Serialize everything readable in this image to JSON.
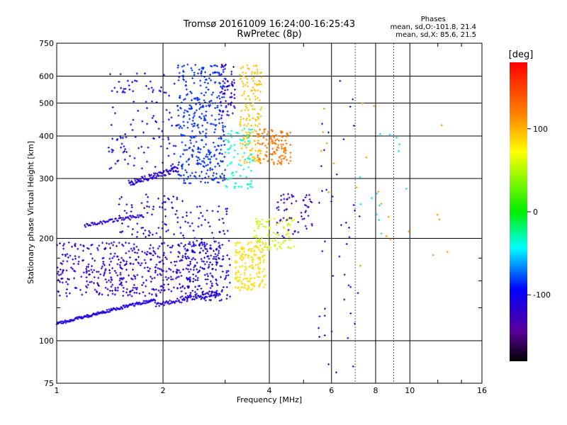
{
  "title_line1": "Tromsø 20161009 16:24:00-16:25:43",
  "title_line2": "RwPretec (8p)",
  "stats": {
    "header": "Phases",
    "line_O": "mean, sd,O:-101.8, 21.4",
    "line_X": "mean, sd,X: 85.6, 21.5"
  },
  "colorbar": {
    "label": "[deg]",
    "ticks": [
      {
        "value": 100,
        "label": "100"
      },
      {
        "value": 0,
        "label": "0"
      },
      {
        "value": -100,
        "label": "-100"
      }
    ],
    "range": [
      -180,
      180
    ]
  },
  "chart_data": {
    "type": "scatter",
    "title": "Tromsø 20161009 16:24:00-16:25:43",
    "subtitle": "RwPretec (8p)",
    "xlabel": "Frequency [MHz]",
    "ylabel": "Stationary phase Virtual Height [km]",
    "xscale": "log",
    "yscale": "log",
    "xlim": [
      1,
      16
    ],
    "ylim": [
      75,
      750
    ],
    "x_ticks": [
      1,
      2,
      4,
      6,
      8,
      10,
      16
    ],
    "y_ticks": [
      75,
      100,
      200,
      300,
      400,
      500,
      600,
      750
    ],
    "grid": true,
    "color_variable": "phase [deg]",
    "clusters": [
      {
        "id": "low-trace",
        "phase": -110,
        "f0": 1.0,
        "f1": 1.9,
        "h0": 112,
        "h1": 132,
        "n": 140,
        "jitter": 0.01
      },
      {
        "id": "low-trace-2",
        "phase": -115,
        "f0": 1.9,
        "f1": 2.9,
        "h0": 128,
        "h1": 138,
        "n": 80,
        "jitter": 0.02
      },
      {
        "id": "E-cloud",
        "phase": -112,
        "f0": 1.0,
        "f1": 2.9,
        "h0": 135,
        "h1": 195,
        "n": 520,
        "jitter": 0.0
      },
      {
        "id": "E-upper",
        "phase": -108,
        "f0": 1.5,
        "f1": 2.3,
        "h0": 200,
        "h1": 270,
        "n": 80,
        "jitter": 0.0
      },
      {
        "id": "Es-band",
        "phase": -115,
        "f0": 1.2,
        "f1": 1.75,
        "h0": 218,
        "h1": 234,
        "n": 60,
        "jitter": 0.01
      },
      {
        "id": "F-trace-low",
        "phase": -115,
        "f0": 1.6,
        "f1": 2.2,
        "h0": 290,
        "h1": 320,
        "n": 90,
        "jitter": 0.02
      },
      {
        "id": "F-cloud",
        "phase": -100,
        "f0": 1.4,
        "f1": 2.2,
        "h0": 320,
        "h1": 620,
        "n": 120,
        "jitter": 0.0
      },
      {
        "id": "F-main",
        "phase": -85,
        "f0": 2.2,
        "f1": 3.0,
        "h0": 290,
        "h1": 650,
        "n": 380,
        "jitter": 0.0
      },
      {
        "id": "F-upper",
        "phase": -115,
        "f0": 2.9,
        "f1": 3.2,
        "h0": 450,
        "h1": 650,
        "n": 60,
        "jitter": 0.0
      },
      {
        "id": "F-x-yellow",
        "phase": 95,
        "f0": 3.3,
        "f1": 3.8,
        "h0": 330,
        "h1": 650,
        "n": 160,
        "jitter": 0.0
      },
      {
        "id": "F-x-orange",
        "phase": 125,
        "f0": 3.7,
        "f1": 4.6,
        "h0": 330,
        "h1": 420,
        "n": 120,
        "jitter": 0.0
      },
      {
        "id": "F-cyan",
        "phase": -35,
        "f0": 3.0,
        "f1": 3.6,
        "h0": 280,
        "h1": 420,
        "n": 80,
        "jitter": 0.0
      },
      {
        "id": "mid-blue",
        "phase": -105,
        "f0": 2.3,
        "f1": 3.1,
        "h0": 130,
        "h1": 250,
        "n": 150,
        "jitter": 0.0
      },
      {
        "id": "mid-yellow",
        "phase": 85,
        "f0": 3.2,
        "f1": 3.9,
        "h0": 140,
        "h1": 195,
        "n": 170,
        "jitter": 0.0
      },
      {
        "id": "mid-green",
        "phase": 55,
        "f0": 3.6,
        "f1": 4.7,
        "h0": 185,
        "h1": 230,
        "n": 90,
        "jitter": 0.0
      },
      {
        "id": "mid-purple",
        "phase": -125,
        "f0": 4.2,
        "f1": 5.3,
        "h0": 200,
        "h1": 270,
        "n": 60,
        "jitter": 0.0
      },
      {
        "id": "scatter-hf",
        "phase": -110,
        "f0": 5.5,
        "f1": 7.2,
        "h0": 80,
        "h1": 600,
        "n": 45,
        "jitter": 0.0
      },
      {
        "id": "scatter-hf-warm",
        "phase": 110,
        "f0": 5.5,
        "f1": 13.5,
        "h0": 150,
        "h1": 500,
        "n": 22,
        "jitter": 0.0
      },
      {
        "id": "scatter-hf-cool",
        "phase": -50,
        "f0": 7.0,
        "f1": 10.0,
        "h0": 200,
        "h1": 420,
        "n": 14,
        "jitter": 0.0
      }
    ]
  }
}
